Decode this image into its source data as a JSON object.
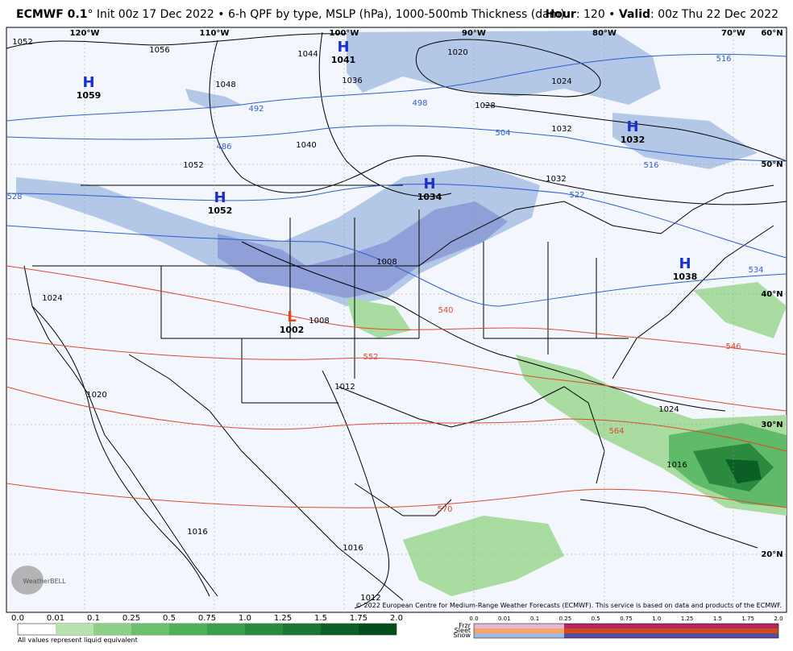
{
  "header": {
    "model": "ECMWF 0.1",
    "description": "° Init 00z 17 Dec 2022 • 6-h QPF by type, MSLP (hPa), 1000-500mb Thickness (dam)",
    "hour_label": "Hour",
    "hour_value": ": 120 • ",
    "valid_label": "Valid",
    "valid_value": ": 00z Thu 22 Dec 2022"
  },
  "map": {
    "lon_labels": [
      "120°W",
      "110°W",
      "100°W",
      "90°W",
      "80°W",
      "70°W",
      "60°N"
    ],
    "lat_labels": [
      "50°N",
      "40°N",
      "30°N",
      "20°N"
    ],
    "pressure_centers": [
      {
        "type": "H",
        "value": "1059"
      },
      {
        "type": "H",
        "value": "1041"
      },
      {
        "type": "H",
        "value": "1032"
      },
      {
        "type": "H",
        "value": "1052"
      },
      {
        "type": "H",
        "value": "1034"
      },
      {
        "type": "H",
        "value": "1038"
      },
      {
        "type": "L",
        "value": "1002"
      }
    ],
    "isobar_labels": [
      "1052",
      "1056",
      "1044",
      "1048",
      "1036",
      "1020",
      "1024",
      "1028",
      "1032",
      "1040",
      "1052",
      "1032",
      "1008",
      "1008",
      "1024",
      "1012",
      "1020",
      "1016",
      "1016",
      "1024",
      "1016",
      "1012"
    ],
    "thickness_labels": [
      "492",
      "498",
      "486",
      "504",
      "516",
      "516",
      "522",
      "528",
      "534",
      "540",
      "546",
      "552",
      "564",
      "570"
    ],
    "logo": "WeatherBELL"
  },
  "copyright": "© 2022 European Centre for Medium-Range Weather Forecasts (ECMWF). This service is based on data and products of the ECMWF.",
  "qpf_legend": {
    "ticks": [
      "0.0",
      "0.01",
      "0.1",
      "0.25",
      "0.5",
      "0.75",
      "1.0",
      "1.25",
      "1.5",
      "1.75",
      "2.0"
    ],
    "note": "All values represent liquid equivalent"
  },
  "ptype_legend": {
    "ticks": [
      "0.0",
      "0.01",
      "0.1",
      "0.25",
      "0.5",
      "0.75",
      "1.0",
      "1.25",
      "1.5",
      "1.75",
      "2.0"
    ],
    "types": [
      "Frzr",
      "Sleet",
      "Snow"
    ]
  }
}
